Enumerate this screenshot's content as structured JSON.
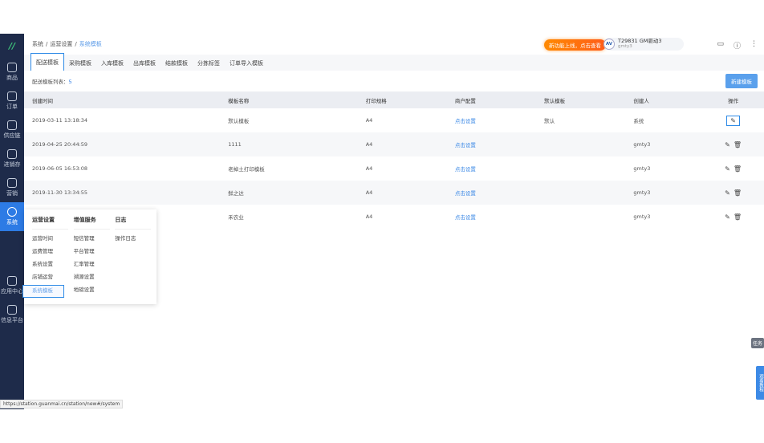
{
  "sidebar": {
    "logo": "//",
    "items": [
      {
        "label": "商品",
        "icon": "bag-icon"
      },
      {
        "label": "订单",
        "icon": "document-icon"
      },
      {
        "label": "供应链",
        "icon": "exchange-icon"
      },
      {
        "label": "进销存",
        "icon": "piggy-icon"
      },
      {
        "label": "营销",
        "icon": "tag-icon"
      },
      {
        "label": "系统",
        "icon": "gear-icon",
        "active": true
      },
      {
        "label": "应用中心",
        "icon": "apps-icon"
      },
      {
        "label": "信息平台",
        "icon": "cube-icon"
      }
    ]
  },
  "breadcrumb": [
    "系统",
    "/",
    "运营设置",
    "/",
    "系统模板"
  ],
  "header": {
    "promo": "新功能上线，点击查看",
    "avatar": "AV",
    "user_name": "T29831 GM驱动3",
    "user_sub": "gmty3"
  },
  "tabs": [
    "配送模板",
    "采购模板",
    "入库模板",
    "出库模板",
    "结款模板",
    "分拣标签",
    "订单导入模板"
  ],
  "count_label": "配送模板列表：",
  "count_value": "5",
  "new_button": "新建模板",
  "table": {
    "headers": [
      "创建时间",
      "模板名称",
      "打印规格",
      "商户配置",
      "默认模板",
      "创建人",
      "操作"
    ],
    "rows": [
      [
        "2019-03-11 13:18:34",
        "默认模板",
        "A4",
        "点击设置",
        "默认",
        "系统"
      ],
      [
        "2019-04-25 20:44:59",
        "1111",
        "A4",
        "点击设置",
        "",
        "gmty3"
      ],
      [
        "2019-06-05 16:53:08",
        "老掉土打印模板",
        "A4",
        "点击设置",
        "",
        "gmty3"
      ],
      [
        "2019-11-30 13:34:55",
        "鲜之达",
        "A4",
        "点击设置",
        "",
        "gmty3"
      ],
      [
        "",
        "禾农业",
        "A4",
        "点击设置",
        "",
        "gmty3"
      ]
    ]
  },
  "menu": {
    "columns": [
      {
        "title": "运营设置",
        "items": [
          "运营时间",
          "运费管理",
          "系统设置",
          "店铺运营",
          "系统模板"
        ]
      },
      {
        "title": "增值服务",
        "items": [
          "短信管理",
          "平台管理",
          "汇率管理",
          "溯源设置",
          "地磅设置"
        ]
      },
      {
        "title": "日志",
        "items": [
          "操作日志"
        ]
      }
    ]
  },
  "float": {
    "task": "任务",
    "tutorial": "观看教程"
  },
  "status_url": "https://station.guanmai.cn/station/new#/system"
}
